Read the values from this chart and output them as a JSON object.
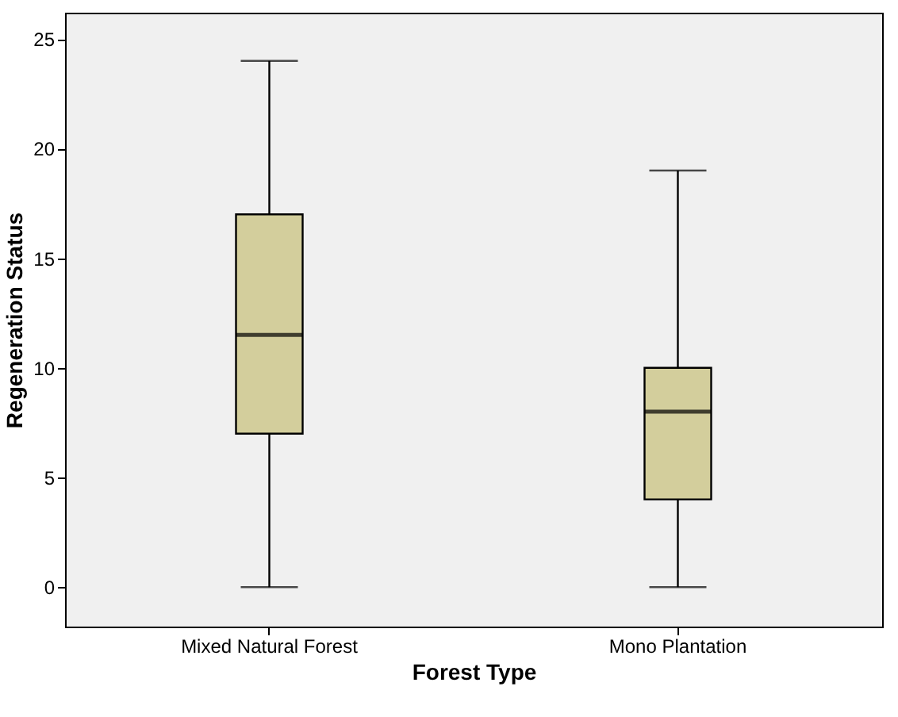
{
  "chart_data": {
    "type": "box",
    "xlabel": "Forest Type",
    "ylabel": "Regeneration Status",
    "categories": [
      "Mixed Natural Forest",
      "Mono Plantation"
    ],
    "boxes": [
      {
        "low": 0,
        "q1": 7,
        "median": 11.5,
        "q3": 17,
        "high": 24
      },
      {
        "low": 0,
        "q1": 4,
        "median": 8,
        "q3": 10,
        "high": 19
      }
    ],
    "color": "#d3ce9c",
    "ylim": [
      -1.8,
      26.2
    ],
    "yticks": [
      0,
      5,
      10,
      15,
      20,
      25
    ]
  }
}
